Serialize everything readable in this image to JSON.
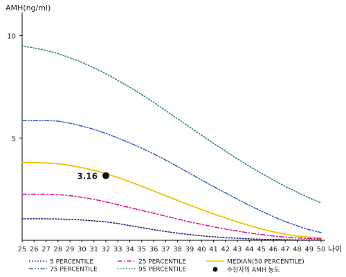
{
  "chart_data": {
    "type": "line",
    "ylabel": "AMH(ng/ml)",
    "xlabel": "나이",
    "xlim": [
      25,
      50
    ],
    "ylim": [
      0,
      11
    ],
    "yticks": [
      5,
      10
    ],
    "x": [
      25,
      26,
      27,
      28,
      29,
      30,
      31,
      32,
      33,
      34,
      35,
      36,
      37,
      38,
      39,
      40,
      41,
      42,
      43,
      44,
      45,
      46,
      47,
      48,
      49,
      50
    ],
    "series": [
      {
        "name": "5 PERCENTILE",
        "color": "#1f1f7a",
        "dash": "dotted",
        "values": [
          1.05,
          1.05,
          1.05,
          1.04,
          1.02,
          0.99,
          0.95,
          0.9,
          0.82,
          0.72,
          0.62,
          0.52,
          0.43,
          0.35,
          0.28,
          0.22,
          0.17,
          0.13,
          0.1,
          0.07,
          0.05,
          0.04,
          0.03,
          0.02,
          0.02,
          0.02
        ]
      },
      {
        "name": "25 PERCENTILE",
        "color": "#d81b8a",
        "dash": "dashdot",
        "values": [
          2.25,
          2.25,
          2.25,
          2.23,
          2.18,
          2.1,
          2.0,
          1.88,
          1.74,
          1.6,
          1.46,
          1.32,
          1.18,
          1.04,
          0.9,
          0.78,
          0.66,
          0.55,
          0.45,
          0.36,
          0.28,
          0.21,
          0.16,
          0.12,
          0.09,
          0.08
        ]
      },
      {
        "name": "MEDIAN(50 PERCENTILE)",
        "color": "#f2c100",
        "dash": "solid",
        "values": [
          3.8,
          3.8,
          3.78,
          3.74,
          3.66,
          3.55,
          3.42,
          3.26,
          3.07,
          2.86,
          2.64,
          2.41,
          2.18,
          1.95,
          1.72,
          1.5,
          1.29,
          1.09,
          0.9,
          0.72,
          0.56,
          0.42,
          0.3,
          0.21,
          0.15,
          0.12
        ]
      },
      {
        "name": "75 PERCENTILE",
        "color": "#3a63c7",
        "dash": "dashdotdot",
        "values": [
          5.85,
          5.85,
          5.85,
          5.82,
          5.72,
          5.58,
          5.42,
          5.22,
          5.0,
          4.76,
          4.5,
          4.22,
          3.92,
          3.6,
          3.28,
          2.95,
          2.63,
          2.32,
          2.01,
          1.71,
          1.43,
          1.16,
          0.92,
          0.71,
          0.52,
          0.38
        ]
      },
      {
        "name": "95 PERCENTILE",
        "color": "#2e8b57",
        "dash": "dotted",
        "values": [
          9.5,
          9.4,
          9.28,
          9.12,
          8.92,
          8.69,
          8.43,
          8.14,
          7.82,
          7.48,
          7.12,
          6.74,
          6.34,
          5.94,
          5.54,
          5.14,
          4.74,
          4.36,
          3.98,
          3.62,
          3.28,
          2.95,
          2.64,
          2.35,
          2.08,
          1.83
        ]
      }
    ],
    "marker": {
      "name": "수진자의 AMH 농도",
      "x": 32,
      "y": 3.16,
      "label": "3.16",
      "color": "#111111"
    },
    "legend_position": "bottom"
  }
}
